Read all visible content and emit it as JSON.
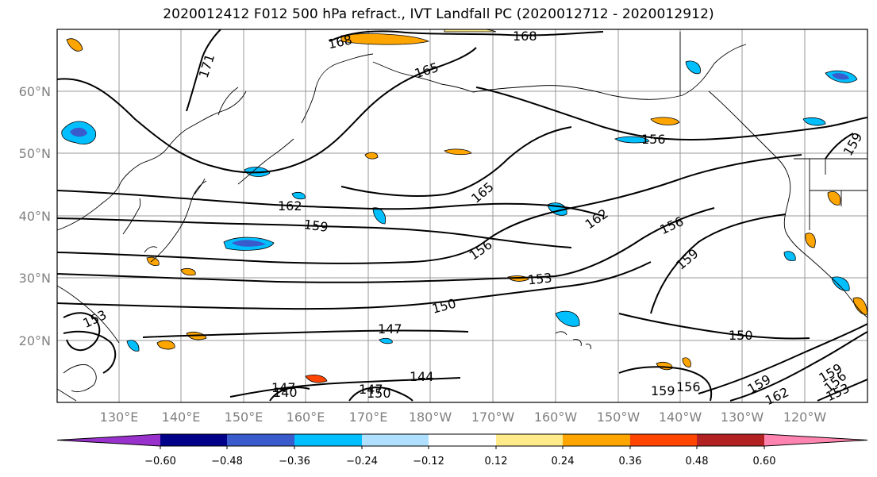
{
  "title": "2020012412 F012 500 hPa refract., IVT Landfall PC (2020012712 - 2020012912)",
  "map": {
    "lat_labels": [
      "60°N",
      "50°N",
      "40°N",
      "30°N",
      "20°N"
    ],
    "lon_labels": [
      "130°E",
      "140°E",
      "150°E",
      "160°E",
      "170°E",
      "180°W",
      "170°W",
      "160°W",
      "150°W",
      "140°W",
      "130°W",
      "120°W"
    ],
    "contour_labels": [
      "168",
      "168",
      "171",
      "165",
      "156",
      "159",
      "165",
      "162",
      "162",
      "159",
      "156",
      "156",
      "159",
      "153",
      "150",
      "147",
      "150",
      "144",
      "147",
      "140",
      "147",
      "150",
      "159",
      "156",
      "159",
      "162",
      "153",
      "153",
      "159",
      "156"
    ]
  },
  "colorbar": {
    "colors": [
      "#9932cc",
      "#00008b",
      "#3a5bcc",
      "#00bfff",
      "#b0e0ff",
      "#ffffff",
      "#ffeb8a",
      "#ffa500",
      "#ff4500",
      "#b22222",
      "#ff85b0"
    ],
    "tick_labels": [
      "−0.60",
      "−0.48",
      "−0.36",
      "−0.24",
      "−0.12",
      "0.12",
      "0.24",
      "0.36",
      "0.48",
      "0.60"
    ]
  }
}
